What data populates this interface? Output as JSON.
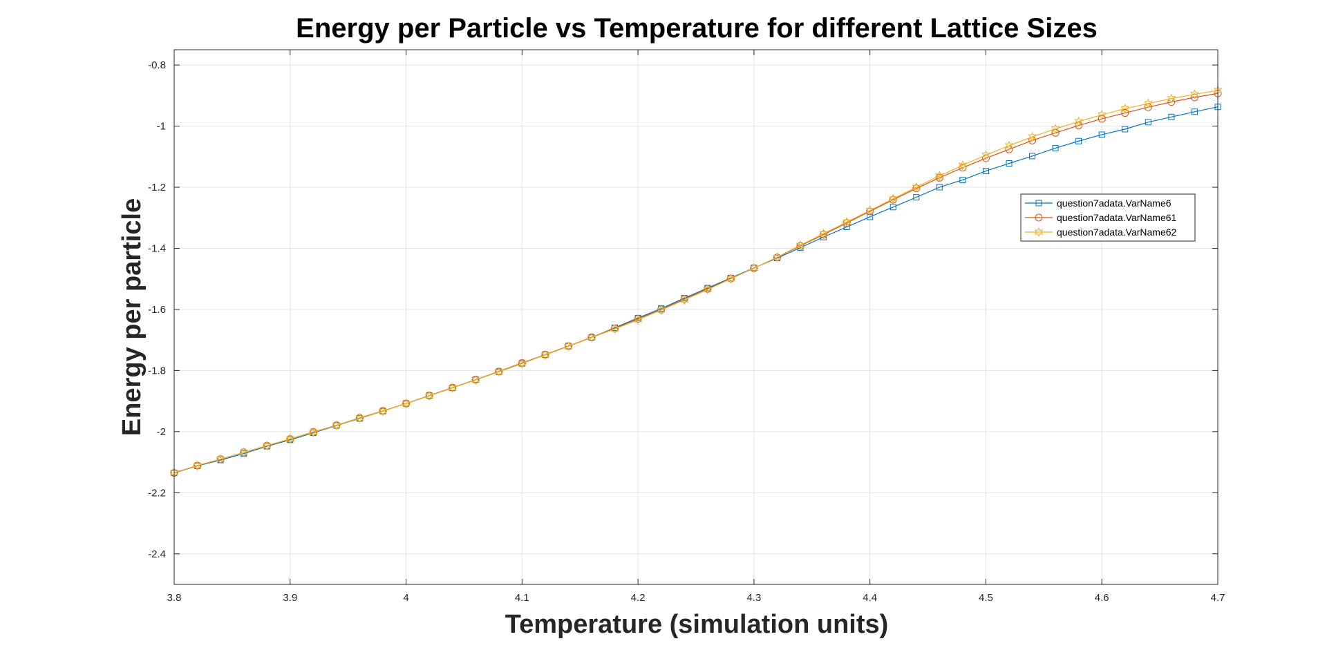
{
  "chart_data": {
    "type": "line",
    "title": "Energy per Particle vs Temperature for different Lattice Sizes",
    "xlabel": "Temperature (simulation units)",
    "ylabel": "Energy per particle",
    "xlim": [
      3.8,
      4.7
    ],
    "ylim": [
      -2.5,
      -0.75
    ],
    "xticks": [
      3.8,
      3.9,
      4.0,
      4.1,
      4.2,
      4.3,
      4.4,
      4.5,
      4.6,
      4.7
    ],
    "xtick_labels": [
      "3.8",
      "3.9",
      "4",
      "4.1",
      "4.2",
      "4.3",
      "4.4",
      "4.5",
      "4.6",
      "4.7"
    ],
    "yticks": [
      -2.4,
      -2.2,
      -2.0,
      -1.8,
      -1.6,
      -1.4,
      -1.2,
      -1.0,
      -0.8
    ],
    "ytick_labels": [
      "-2.4",
      "-2.2",
      "-2",
      "-1.8",
      "-1.6",
      "-1.4",
      "-1.2",
      "-1",
      "-0.8"
    ],
    "grid": true,
    "legend_position": "right, upper-middle",
    "x": [
      3.8,
      3.82,
      3.84,
      3.86,
      3.88,
      3.9,
      3.92,
      3.94,
      3.96,
      3.98,
      4.0,
      4.02,
      4.04,
      4.06,
      4.08,
      4.1,
      4.12,
      4.14,
      4.16,
      4.18,
      4.2,
      4.22,
      4.24,
      4.26,
      4.28,
      4.3,
      4.32,
      4.34,
      4.36,
      4.38,
      4.4,
      4.42,
      4.44,
      4.46,
      4.48,
      4.5,
      4.52,
      4.54,
      4.56,
      4.58,
      4.6,
      4.62,
      4.64,
      4.66,
      4.68,
      4.7
    ],
    "series": [
      {
        "name": "question7adata.VarName6",
        "color": "#0072BD",
        "marker": "square",
        "values": [
          -2.135,
          -2.112,
          -2.093,
          -2.072,
          -2.048,
          -2.027,
          -2.004,
          -1.98,
          -1.957,
          -1.933,
          -1.908,
          -1.882,
          -1.857,
          -1.83,
          -1.804,
          -1.777,
          -1.748,
          -1.72,
          -1.692,
          -1.66,
          -1.628,
          -1.597,
          -1.563,
          -1.53,
          -1.497,
          -1.464,
          -1.432,
          -1.398,
          -1.363,
          -1.33,
          -1.297,
          -1.265,
          -1.233,
          -1.2,
          -1.176,
          -1.147,
          -1.122,
          -1.098,
          -1.072,
          -1.049,
          -1.028,
          -1.01,
          -0.987,
          -0.97,
          -0.953,
          -0.937
        ]
      },
      {
        "name": "question7adata.VarName61",
        "color": "#D95319",
        "marker": "circle",
        "values": [
          -2.135,
          -2.111,
          -2.09,
          -2.068,
          -2.046,
          -2.024,
          -2.001,
          -1.979,
          -1.955,
          -1.932,
          -1.908,
          -1.882,
          -1.856,
          -1.83,
          -1.803,
          -1.775,
          -1.748,
          -1.72,
          -1.691,
          -1.662,
          -1.631,
          -1.6,
          -1.566,
          -1.533,
          -1.499,
          -1.465,
          -1.43,
          -1.392,
          -1.355,
          -1.317,
          -1.279,
          -1.241,
          -1.204,
          -1.169,
          -1.136,
          -1.105,
          -1.076,
          -1.047,
          -1.022,
          -0.998,
          -0.976,
          -0.957,
          -0.938,
          -0.921,
          -0.906,
          -0.893
        ]
      },
      {
        "name": "question7adata.VarName62",
        "color": "#EDB120",
        "marker": "hexagram",
        "values": [
          -2.134,
          -2.111,
          -2.09,
          -2.068,
          -2.046,
          -2.024,
          -2.002,
          -1.979,
          -1.956,
          -1.933,
          -1.908,
          -1.883,
          -1.857,
          -1.831,
          -1.804,
          -1.777,
          -1.749,
          -1.721,
          -1.692,
          -1.664,
          -1.634,
          -1.602,
          -1.569,
          -1.535,
          -1.5,
          -1.465,
          -1.429,
          -1.39,
          -1.352,
          -1.314,
          -1.276,
          -1.238,
          -1.2,
          -1.163,
          -1.128,
          -1.095,
          -1.064,
          -1.035,
          -1.009,
          -0.985,
          -0.963,
          -0.943,
          -0.926,
          -0.91,
          -0.896,
          -0.883
        ]
      }
    ]
  }
}
